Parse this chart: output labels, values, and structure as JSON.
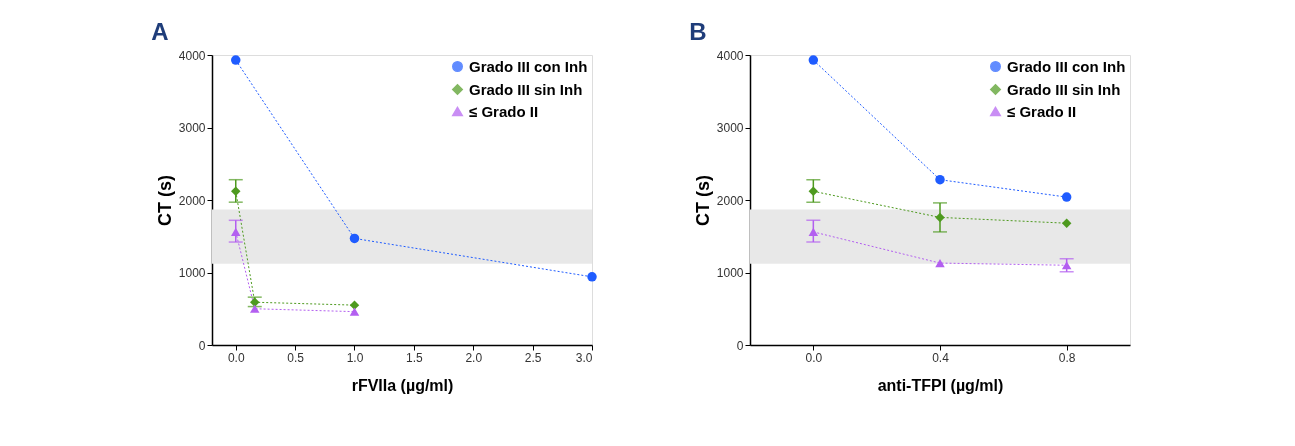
{
  "chart_data": [
    {
      "type": "line",
      "title": "A",
      "xlabel": "rFVIIa (µg/ml)",
      "ylabel": "CT (s)",
      "xlim": [
        -0.2,
        3.0
      ],
      "xticks": [
        {
          "value": 0,
          "label": "0.0"
        },
        {
          "value": 0.5,
          "label": "0.5"
        },
        {
          "value": 1,
          "label": "1.0"
        },
        {
          "value": 1.5,
          "label": "1.5"
        },
        {
          "value": 2,
          "label": "2.0"
        },
        {
          "value": 2.5,
          "label": "2.5"
        },
        {
          "value": 3,
          "label": "3.0"
        }
      ],
      "ylim": [
        0,
        4000
      ],
      "yticks": [
        0,
        1000,
        2000,
        3000,
        4000
      ],
      "legend": "top right",
      "grid": false,
      "line_style": "dotted",
      "bands": [
        {
          "axis": "y",
          "from": 1120,
          "to": 1870,
          "color": "#e8e8e8"
        }
      ],
      "series": [
        {
          "name": "Grado III con Inh",
          "color": "#1f5cff",
          "marker": "circle",
          "x": [
            0,
            1,
            3
          ],
          "values": [
            3930,
            1470,
            940
          ]
        },
        {
          "name": "Grado III sin Inh",
          "color": "#4e9a1f",
          "marker": "diamond",
          "x": [
            0,
            0.16,
            1
          ],
          "values": [
            2120,
            590,
            550
          ],
          "errors": [
            [
              1970,
              2280
            ],
            [
              530,
              660
            ],
            null
          ]
        },
        {
          "name": "≤ Grado II",
          "color": "#b35ff0",
          "marker": "triangle",
          "x": [
            0,
            0.16,
            1
          ],
          "values": [
            1560,
            500,
            460
          ],
          "errors": [
            [
              1420,
              1720
            ],
            null,
            null
          ]
        }
      ]
    },
    {
      "type": "line",
      "title": "B",
      "xlabel": "anti-TFPI (µg/ml)",
      "ylabel": "CT (s)",
      "xlim": [
        -0.2,
        1.0
      ],
      "xticks": [
        {
          "value": 0,
          "label": "0.0"
        },
        {
          "value": 0.4,
          "label": "0.4"
        },
        {
          "value": 0.8,
          "label": "0.8"
        }
      ],
      "ylim": [
        0,
        4000
      ],
      "yticks": [
        0,
        1000,
        2000,
        3000,
        4000
      ],
      "legend": "top right",
      "grid": false,
      "line_style": "dotted",
      "bands": [
        {
          "axis": "y",
          "from": 1120,
          "to": 1870,
          "color": "#e8e8e8"
        }
      ],
      "series": [
        {
          "name": "Grado III con Inh",
          "color": "#1f5cff",
          "marker": "circle",
          "x": [
            0,
            0.4,
            0.8
          ],
          "values": [
            3930,
            2280,
            2040
          ]
        },
        {
          "name": "Grado III sin Inh",
          "color": "#4e9a1f",
          "marker": "diamond",
          "x": [
            0,
            0.4,
            0.8
          ],
          "values": [
            2120,
            1760,
            1680
          ],
          "errors": [
            [
              1970,
              2280
            ],
            [
              1560,
              1960
            ],
            null
          ]
        },
        {
          "name": "≤ Grado II",
          "color": "#b35ff0",
          "marker": "triangle",
          "x": [
            0,
            0.4,
            0.8
          ],
          "values": [
            1560,
            1130,
            1100
          ],
          "errors": [
            [
              1420,
              1720
            ],
            null,
            [
              1010,
              1190
            ]
          ]
        }
      ]
    }
  ]
}
